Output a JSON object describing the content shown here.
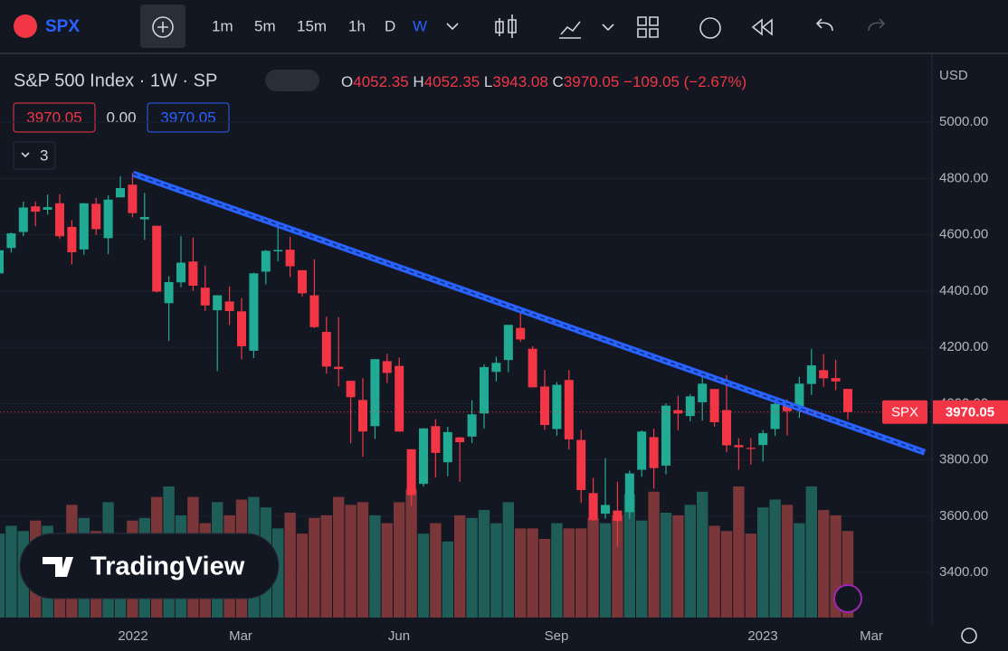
{
  "toolbar": {
    "symbol": "SPX",
    "intervals": [
      "1m",
      "5m",
      "15m",
      "1h",
      "D",
      "W"
    ]
  },
  "legend": {
    "title": "S&P 500 Index · 1W · SP",
    "o_label": "O",
    "open": "4052.35",
    "h_label": "H",
    "high": "4052.35",
    "l_label": "L",
    "low": "3943.08",
    "c_label": "C",
    "close": "3970.05",
    "change": "−109.05 (−2.67%)",
    "bid": "3970.05",
    "spread": "0.00",
    "ask": "3970.05",
    "indicators": "3"
  },
  "currency": "USD",
  "logo": "TradingView",
  "chart_data": {
    "type": "candlestick",
    "candles": {
      "open": [
        4463,
        4553,
        4610,
        4701,
        4689,
        4712,
        4628,
        4548,
        4710,
        4588,
        4733,
        4778,
        4655,
        4632,
        4357,
        4431,
        4505,
        4412,
        4332,
        4363,
        4328,
        4188,
        4469,
        4541,
        4547,
        4474,
        4385,
        4255,
        4131,
        4081,
        4013,
        3920,
        4151,
        4134,
        3838,
        3715,
        3920,
        3792,
        3880,
        3883,
        3965,
        4113,
        4155,
        4269,
        4195,
        4061,
        3910,
        4084,
        3871,
        3682,
        3609,
        3620,
        3614,
        3765,
        3881,
        3780,
        3977,
        3956,
        4005,
        4052,
        3977,
        3853,
        3843,
        3853,
        3910,
        3999,
        3979,
        4070,
        4119,
        4091,
        4052.35
      ],
      "high": [
        4559,
        4608,
        4718,
        4718,
        4743,
        4744,
        4652,
        4713,
        4731,
        4740,
        4808,
        4819,
        4749,
        4632,
        4453,
        4595,
        4590,
        4490,
        4386,
        4416,
        4375,
        4465,
        4546,
        4637,
        4593,
        4471,
        4513,
        4309,
        4307,
        4081,
        4090,
        4158,
        4177,
        4164,
        3838,
        3913,
        3945,
        3918,
        3881,
        4012,
        4140,
        4167,
        4280,
        4325,
        4204,
        4120,
        4077,
        4119,
        3907,
        3736,
        3806,
        3722,
        3762,
        3905,
        3911,
        4001,
        4028,
        4034,
        4100,
        4052,
        4101,
        3877,
        3878,
        3906,
        4003,
        4015,
        4095,
        4195,
        4176,
        4156,
        4052.35
      ],
      "low": [
        4456,
        4537,
        4595,
        4630,
        4672,
        4585,
        4495,
        4529,
        4600,
        4531,
        4733,
        4662,
        4582,
        4395,
        4223,
        4414,
        4401,
        4329,
        4115,
        4279,
        4157,
        4162,
        4424,
        4506,
        4450,
        4381,
        4268,
        4107,
        4062,
        3859,
        3811,
        3875,
        4073,
        3900,
        3637,
        3705,
        3738,
        3742,
        3722,
        3860,
        3912,
        4079,
        4112,
        4219,
        4057,
        3907,
        3886,
        3837,
        3647,
        3584,
        3591,
        3491,
        3590,
        3740,
        3698,
        3749,
        3906,
        3937,
        3940,
        3918,
        3827,
        3765,
        3783,
        3794,
        3885,
        3887,
        3949,
        4031,
        4060,
        4048,
        3943.08
      ],
      "close": [
        4545,
        4605,
        4697,
        4682,
        4698,
        4595,
        4538,
        4712,
        4620,
        4725,
        4766,
        4677,
        4663,
        4398,
        4432,
        4501,
        4419,
        4349,
        4385,
        4329,
        4204,
        4463,
        4543,
        4546,
        4488,
        4392,
        4272,
        4132,
        4123,
        4023,
        3901,
        4158,
        4109,
        3901,
        3675,
        3912,
        3825,
        3899,
        3863,
        3962,
        4130,
        4145,
        4280,
        4228,
        4058,
        3924,
        4067,
        3873,
        3693,
        3586,
        3640,
        3583,
        3752,
        3901,
        3771,
        3993,
        3965,
        4026,
        4071,
        3934,
        3852,
        3845,
        3839,
        3895,
        3999,
        3973,
        4071,
        4136,
        4090,
        4079,
        3970.05
      ]
    },
    "volume": [
      3.2,
      3.5,
      3.3,
      3.7,
      3.5,
      3.2,
      4.3,
      3.8,
      3.3,
      4.4,
      2.4,
      3.7,
      3.8,
      4.6,
      5.0,
      3.9,
      4.6,
      3.6,
      4.4,
      3.9,
      4.5,
      4.6,
      4.2,
      3.4,
      4.0,
      3.2,
      3.8,
      3.9,
      4.6,
      4.3,
      4.4,
      3.9,
      3.6,
      4.4,
      4.9,
      3.2,
      3.6,
      2.9,
      3.9,
      3.8,
      4.1,
      3.6,
      4.4,
      3.4,
      3.4,
      3.0,
      3.6,
      3.4,
      3.4,
      3.8,
      3.6,
      3.9,
      4.7,
      3.7,
      4.8,
      4.0,
      3.9,
      4.3,
      4.8,
      3.5,
      3.3,
      5.0,
      3.2,
      4.2,
      4.5,
      4.3,
      3.6,
      5.0,
      4.1,
      3.9,
      3.3
    ],
    "up_color": "#22ab94",
    "down_color": "#f23645",
    "up_volume_color": "#1f5e58",
    "down_volume_color": "#7a3638",
    "ylim": [
      3240,
      5235
    ],
    "yticks": [
      {
        "value": 3400,
        "label": "3400.00"
      },
      {
        "value": 3600,
        "label": "3600.00"
      },
      {
        "value": 3800,
        "label": "3800.00"
      },
      {
        "value": 4000,
        "label": "4000.00"
      },
      {
        "value": 4200,
        "label": "4200.00"
      },
      {
        "value": 4400,
        "label": "4400.00"
      },
      {
        "value": 4600,
        "label": "4600.00"
      },
      {
        "value": 4800,
        "label": "4800.00"
      },
      {
        "value": 5000,
        "label": "5000.00"
      }
    ],
    "x_labels": [
      "2022",
      "Mar",
      "Jun",
      "Sep",
      "2023",
      "Mar"
    ],
    "trendline": {
      "start": 4817,
      "end": 3827,
      "color": "#2962ff"
    },
    "last_price": {
      "symbol": "SPX",
      "value": 3970.05,
      "label": "3970.05"
    }
  }
}
